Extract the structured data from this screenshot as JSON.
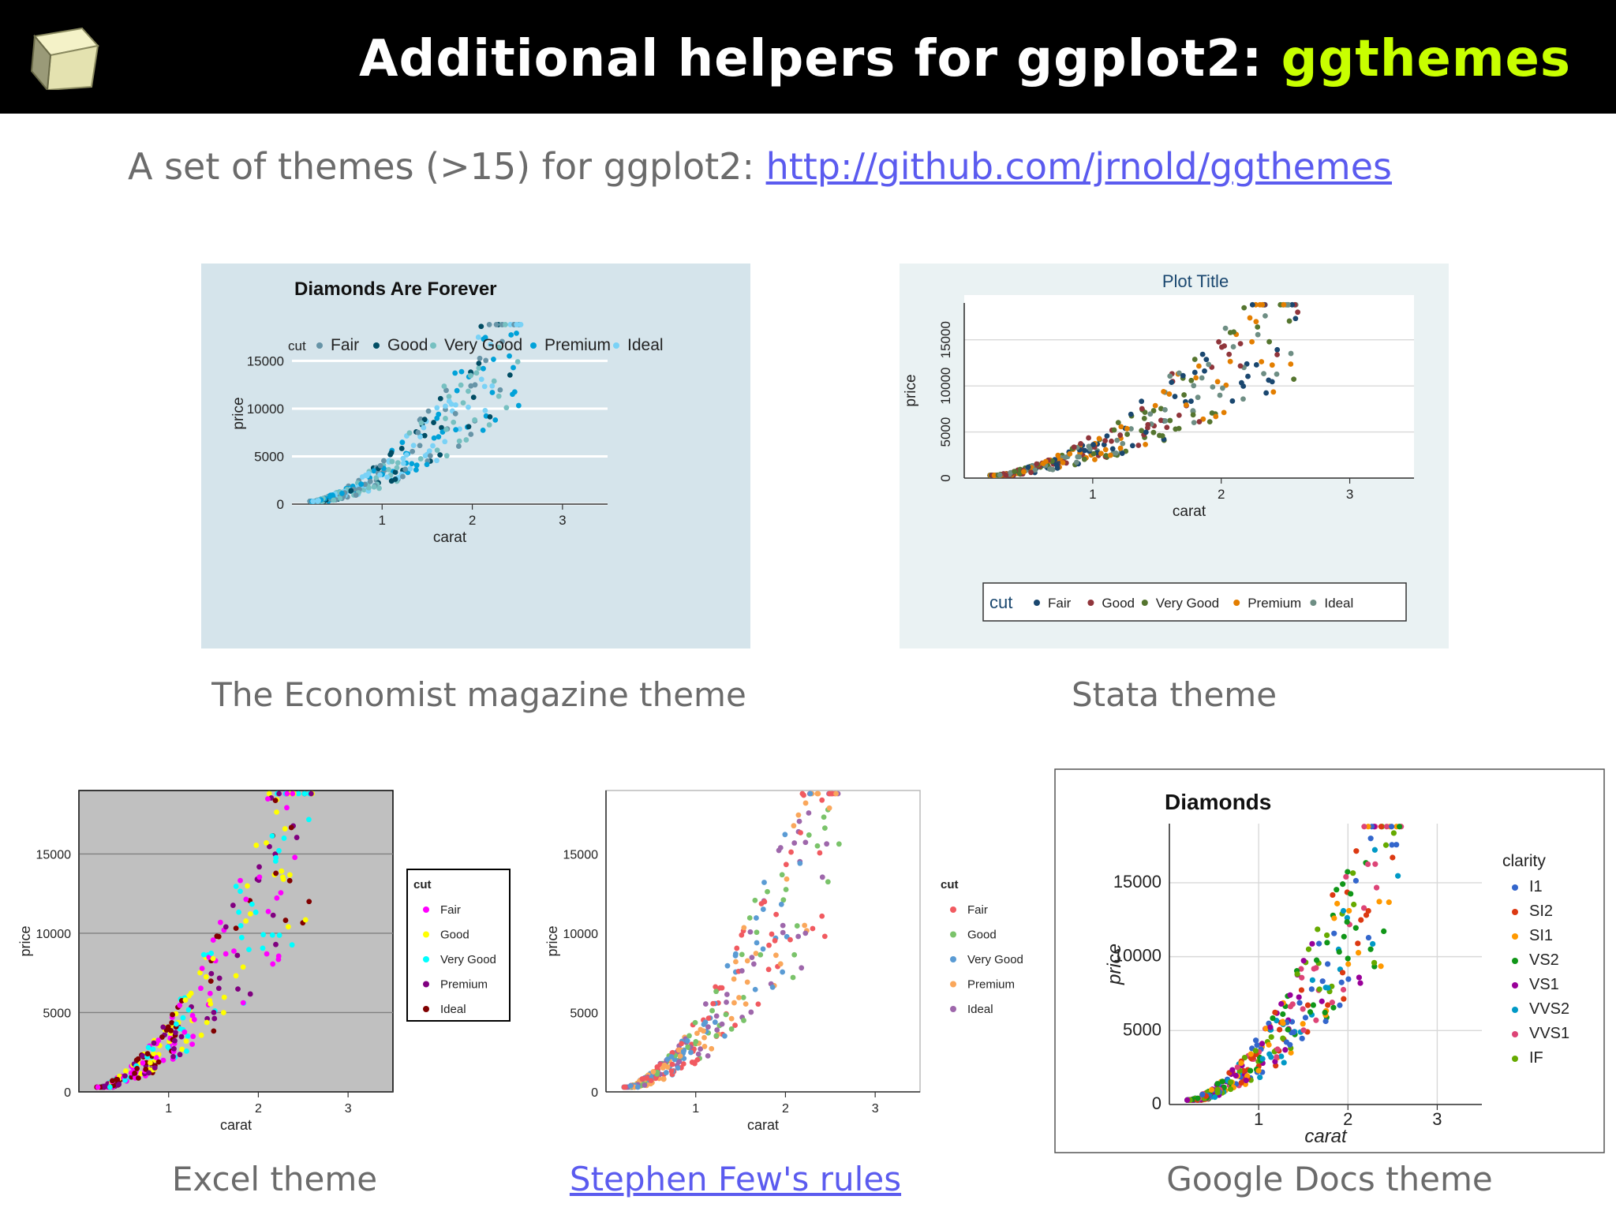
{
  "header": {
    "title_prefix": "Additional helpers for ggplot2: ",
    "title_highlight": "ggthemes",
    "logo_icon": "cube-icon"
  },
  "subtitle": {
    "text": "A set of themes (>15) for ggplot2: ",
    "link": "http://github.com/jrnold/ggthemes"
  },
  "captions": {
    "economist": "The Economist magazine theme",
    "stata": "Stata theme",
    "excel": "Excel theme",
    "few": "Stephen Few's rules",
    "gdocs": "Google Docs theme"
  },
  "chart_data": [
    {
      "type": "scatter",
      "title": "Diamonds Are Forever",
      "xlabel": "carat",
      "ylabel": "price",
      "xlim": [
        0,
        3.5
      ],
      "ylim": [
        0,
        19000
      ],
      "xticks": [
        "1",
        "2",
        "3"
      ],
      "yticks": [
        "0",
        "5000",
        "10000",
        "15000"
      ],
      "legend_title": "cut",
      "legend": [
        "Fair",
        "Good",
        "Very Good",
        "Premium",
        "Ideal"
      ],
      "legend_placement": "top",
      "grid": "horizontal",
      "colors": [
        "#6794a7",
        "#014d64",
        "#76c0c1",
        "#01a2d9",
        "#7ad2f6"
      ],
      "background": "#d5e4eb"
    },
    {
      "type": "scatter",
      "title": "Plot Title",
      "xlabel": "carat",
      "ylabel": "price",
      "xlim": [
        0,
        3.5
      ],
      "ylim": [
        0,
        19000
      ],
      "xticks": [
        "1",
        "2",
        "3"
      ],
      "yticks": [
        "0",
        "5000",
        "10000",
        "15000"
      ],
      "legend_title": "cut",
      "legend": [
        "Fair",
        "Good",
        "Very Good",
        "Premium",
        "Ideal"
      ],
      "legend_placement": "bottom",
      "grid": "horizontal",
      "colors": [
        "#1a476f",
        "#90353b",
        "#55752f",
        "#e37e00",
        "#6e8e84"
      ],
      "background": "#eaf2f3"
    },
    {
      "type": "scatter",
      "title": "",
      "xlabel": "carat",
      "ylabel": "price",
      "xlim": [
        0,
        3.5
      ],
      "ylim": [
        0,
        19000
      ],
      "xticks": [
        "1",
        "2",
        "3"
      ],
      "yticks": [
        "0",
        "5000",
        "10000",
        "15000"
      ],
      "legend_title": "cut",
      "legend": [
        "Fair",
        "Good",
        "Very Good",
        "Premium",
        "Ideal"
      ],
      "legend_placement": "right",
      "grid": "horizontal",
      "colors": [
        "#ff00ff",
        "#ffff00",
        "#00ffff",
        "#800080",
        "#800000"
      ],
      "background": "#c0c0c0"
    },
    {
      "type": "scatter",
      "title": "",
      "xlabel": "carat",
      "ylabel": "price",
      "xlim": [
        0,
        3.5
      ],
      "ylim": [
        0,
        19000
      ],
      "xticks": [
        "1",
        "2",
        "3"
      ],
      "yticks": [
        "0",
        "5000",
        "10000",
        "15000"
      ],
      "legend_title": "cut",
      "legend": [
        "Fair",
        "Good",
        "Very Good",
        "Premium",
        "Ideal"
      ],
      "legend_placement": "right",
      "grid": "none",
      "colors": [
        "#f15a60",
        "#7ac36a",
        "#5a9bd4",
        "#faa75b",
        "#9e67ab"
      ],
      "background": "#ffffff"
    },
    {
      "type": "scatter",
      "title": "Diamonds",
      "xlabel": "carat",
      "ylabel": "price",
      "xlim": [
        0,
        3.5
      ],
      "ylim": [
        0,
        19000
      ],
      "xticks": [
        "1",
        "2",
        "3"
      ],
      "yticks": [
        "0",
        "5000",
        "10000",
        "15000"
      ],
      "legend_title": "clarity",
      "legend": [
        "I1",
        "SI2",
        "SI1",
        "VS2",
        "VS1",
        "VVS2",
        "VVS1",
        "IF"
      ],
      "legend_placement": "right",
      "grid": "both",
      "colors": [
        "#3366cc",
        "#dc3912",
        "#ff9900",
        "#109618",
        "#990099",
        "#0099c6",
        "#dd4477",
        "#66aa00"
      ],
      "background": "#ffffff"
    }
  ]
}
